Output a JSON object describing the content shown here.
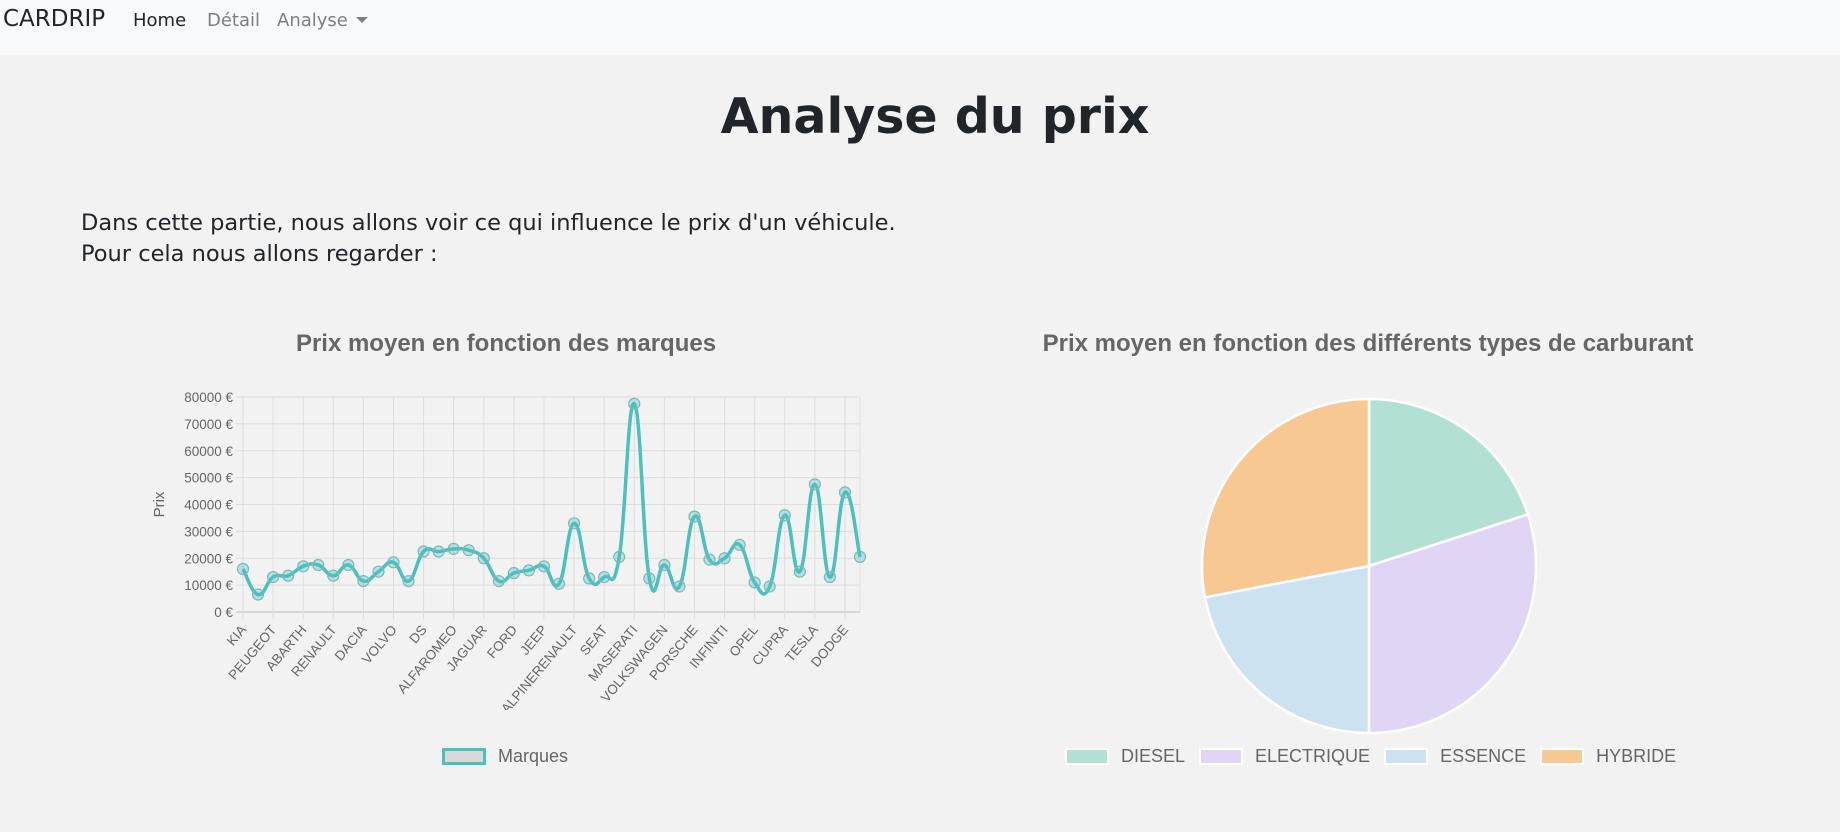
{
  "navbar": {
    "brand": "CARDRIP",
    "links": [
      {
        "label": "Home",
        "active": true
      },
      {
        "label": "Détail",
        "active": false
      },
      {
        "label": "Analyse",
        "active": false,
        "dropdown": true
      }
    ]
  },
  "page": {
    "title": "Analyse du prix",
    "intro_line1": "Dans cette partie, nous allons voir ce qui influence le prix d'un véhicule.",
    "intro_line2": "Pour cela nous allons regarder :"
  },
  "chart_data": [
    {
      "type": "line",
      "title": "Prix moyen en fonction des marques",
      "ylabel": "Prix",
      "xlabel": "",
      "ylim": [
        0,
        80000
      ],
      "yticks": [
        "0 €",
        "10000 €",
        "20000 €",
        "30000 €",
        "40000 €",
        "50000 €",
        "60000 €",
        "70000 €",
        "80000 €"
      ],
      "grid": true,
      "legend": "bottom",
      "tick_labels": [
        "KIA",
        "PEUGEOT",
        "ABARTH",
        "RENAULT",
        "DACIA",
        "VOLVO",
        "DS",
        "ALFAROMEO",
        "JAGUAR",
        "FORD",
        "JEEP",
        "ALPINERENAULT",
        "SEAT",
        "MASERATI",
        "VOLKSWAGEN",
        "PORSCHE",
        "INFINITI",
        "OPEL",
        "CUPRA",
        "TESLA",
        "DODGE"
      ],
      "values": [
        16000,
        6500,
        13000,
        13500,
        17000,
        17500,
        13500,
        17500,
        11500,
        15000,
        18500,
        11500,
        22500,
        22500,
        23500,
        23000,
        20000,
        11500,
        14500,
        15500,
        17000,
        10500,
        33000,
        12500,
        13000,
        20500,
        77500,
        12500,
        17500,
        9500,
        35500,
        19500,
        20000,
        25000,
        11000,
        9500,
        36000,
        15000,
        47500,
        13000,
        44500,
        20500
      ],
      "series": [
        {
          "name": "Marques",
          "color": "#4bc0c0",
          "fill": "rgba(75,192,192,0.35)"
        }
      ]
    },
    {
      "type": "pie",
      "title": "Prix moyen en fonction des différents types de carburant",
      "legend": "bottom",
      "slices": [
        {
          "label": "DIESEL",
          "value": 20,
          "color": "#b3e0d5"
        },
        {
          "label": "ELECTRIQUE",
          "value": 30,
          "color": "#e0d5f5"
        },
        {
          "label": "ESSENCE",
          "value": 22,
          "color": "#cde2f0"
        },
        {
          "label": "HYBRIDE",
          "value": 28,
          "color": "#f8c893"
        }
      ]
    }
  ]
}
